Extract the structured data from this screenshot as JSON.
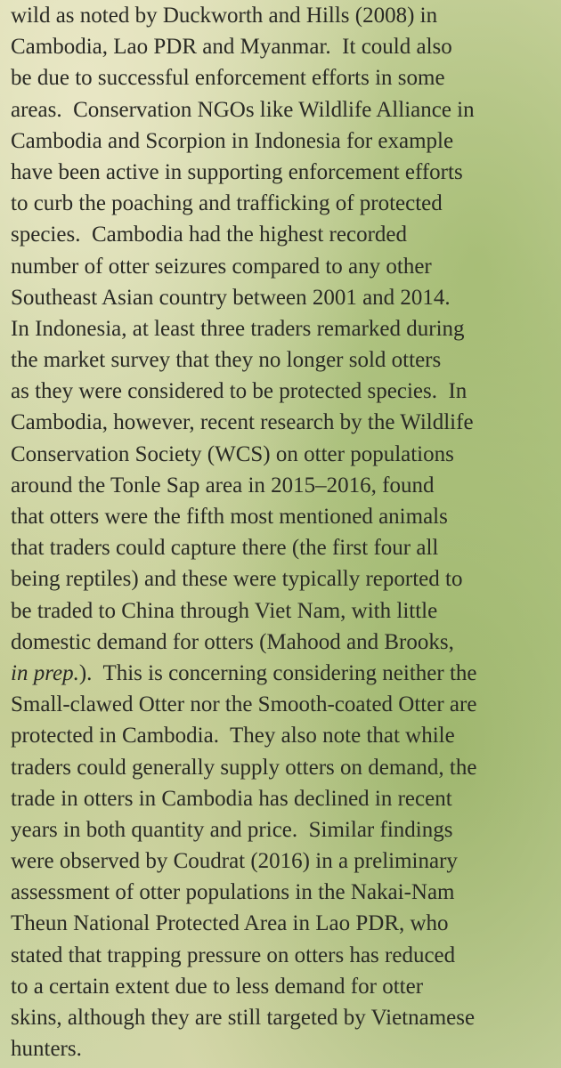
{
  "document": {
    "lines": [
      "wild as noted by Duckworth and Hills (2008) in",
      "Cambodia, Lao PDR and Myanmar.  It could also",
      "be due to successful enforcement efforts in some",
      "areas.  Conservation NGOs like Wildlife Alliance in",
      "Cambodia and Scorpion in Indonesia for example",
      "have been active in supporting enforcement efforts",
      "to curb the poaching and trafficking of protected",
      "species.  Cambodia had the highest recorded",
      "number of otter seizures compared to any other",
      "Southeast Asian country between 2001 and 2014.",
      "In Indonesia, at least three traders remarked during",
      "the market survey that they no longer sold otters",
      "as they were considered to be protected species.  In",
      "Cambodia, however, recent research by the Wildlife",
      "Conservation Society (WCS) on otter populations",
      "around the Tonle Sap area in 2015–2016, found",
      "that otters were the fifth most mentioned animals",
      "that traders could capture there (the first four all",
      "being reptiles) and these were typically reported to",
      "be traded to China through Viet Nam, with little",
      "domestic demand for otters (Mahood and Brooks,",
      {
        "segments": [
          {
            "text": "in prep.",
            "italic": true
          },
          {
            "text": ").  This is concerning considering neither the"
          }
        ]
      },
      "Small-clawed Otter nor the Smooth-coated Otter are",
      "protected in Cambodia.  They also note that while",
      "traders could generally supply otters on demand, the",
      "trade in otters in Cambodia has declined in recent",
      "years in both quantity and price.  Similar findings",
      "were observed by Coudrat (2016) in a preliminary",
      "assessment of otter populations in the Nakai-Nam",
      "Theun National Protected Area in Lao PDR, who",
      "stated that trapping pressure on otters has reduced",
      "to a certain extent due to less demand for otter",
      "skins, although they are still targeted by Vietnamese",
      "hunters."
    ]
  }
}
